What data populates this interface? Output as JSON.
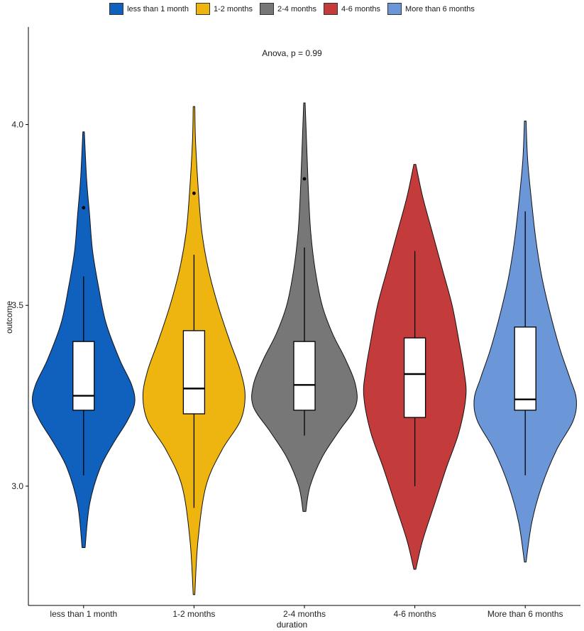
{
  "chart_data": {
    "type": "violin",
    "xlabel": "duration",
    "ylabel": "outcome",
    "ylim": [
      2.67,
      4.27
    ],
    "yticks": [
      "3.0",
      "3.5",
      "4.0"
    ],
    "annotation": "Anova, p = 0.99",
    "legend_position": "top",
    "categories": [
      "less than 1 month",
      "1-2 months",
      "2-4 months",
      "4-6 months",
      "More than 6 months"
    ],
    "colors": [
      "#1060BE",
      "#EEB40F",
      "#777777",
      "#C43B3B",
      "#6B97D8"
    ],
    "series": [
      {
        "name": "less than 1 month",
        "box": {
          "whisker_low": 3.03,
          "q1": 3.21,
          "median": 3.25,
          "q3": 3.4,
          "whisker_high": 3.58
        },
        "outliers": [
          3.77
        ],
        "violin_range": [
          2.83,
          3.98
        ],
        "density": [
          [
            2.83,
            2
          ],
          [
            2.95,
            8
          ],
          [
            3.05,
            22
          ],
          [
            3.12,
            40
          ],
          [
            3.18,
            58
          ],
          [
            3.23,
            68
          ],
          [
            3.28,
            64
          ],
          [
            3.35,
            48
          ],
          [
            3.45,
            30
          ],
          [
            3.55,
            20
          ],
          [
            3.65,
            12
          ],
          [
            3.75,
            8
          ],
          [
            3.85,
            4
          ],
          [
            3.98,
            1
          ]
        ]
      },
      {
        "name": "1-2 months",
        "box": {
          "whisker_low": 2.94,
          "q1": 3.2,
          "median": 3.27,
          "q3": 3.43,
          "whisker_high": 3.64
        },
        "outliers": [
          3.81
        ],
        "violin_range": [
          2.7,
          4.05
        ],
        "density": [
          [
            2.7,
            1
          ],
          [
            2.85,
            5
          ],
          [
            3.0,
            15
          ],
          [
            3.1,
            35
          ],
          [
            3.18,
            58
          ],
          [
            3.25,
            64
          ],
          [
            3.32,
            58
          ],
          [
            3.4,
            45
          ],
          [
            3.5,
            30
          ],
          [
            3.6,
            18
          ],
          [
            3.7,
            10
          ],
          [
            3.8,
            6
          ],
          [
            3.95,
            2
          ],
          [
            4.05,
            1
          ]
        ]
      },
      {
        "name": "2-4 months",
        "box": {
          "whisker_low": 3.14,
          "q1": 3.21,
          "median": 3.28,
          "q3": 3.4,
          "whisker_high": 3.66
        },
        "outliers": [
          3.85
        ],
        "violin_range": [
          2.93,
          4.06
        ],
        "density": [
          [
            2.93,
            2
          ],
          [
            3.0,
            8
          ],
          [
            3.08,
            25
          ],
          [
            3.15,
            48
          ],
          [
            3.22,
            72
          ],
          [
            3.28,
            72
          ],
          [
            3.35,
            58
          ],
          [
            3.42,
            40
          ],
          [
            3.5,
            25
          ],
          [
            3.6,
            15
          ],
          [
            3.7,
            9
          ],
          [
            3.8,
            6
          ],
          [
            3.9,
            4
          ],
          [
            4.06,
            1
          ]
        ]
      },
      {
        "name": "4-6 months",
        "box": {
          "whisker_low": 3.0,
          "q1": 3.19,
          "median": 3.31,
          "q3": 3.41,
          "whisker_high": 3.65
        },
        "outliers": [],
        "violin_range": [
          2.77,
          3.89
        ],
        "density": [
          [
            2.77,
            1
          ],
          [
            2.85,
            8
          ],
          [
            2.95,
            20
          ],
          [
            3.05,
            32
          ],
          [
            3.15,
            45
          ],
          [
            3.25,
            52
          ],
          [
            3.32,
            50
          ],
          [
            3.4,
            45
          ],
          [
            3.5,
            38
          ],
          [
            3.6,
            28
          ],
          [
            3.7,
            18
          ],
          [
            3.8,
            8
          ],
          [
            3.89,
            1
          ]
        ]
      },
      {
        "name": "More than 6 months",
        "box": {
          "whisker_low": 3.03,
          "q1": 3.21,
          "median": 3.24,
          "q3": 3.44,
          "whisker_high": 3.76
        },
        "outliers": [],
        "violin_range": [
          2.79,
          4.01
        ],
        "density": [
          [
            2.79,
            1
          ],
          [
            2.9,
            8
          ],
          [
            3.0,
            20
          ],
          [
            3.1,
            38
          ],
          [
            3.18,
            58
          ],
          [
            3.24,
            62
          ],
          [
            3.3,
            54
          ],
          [
            3.38,
            42
          ],
          [
            3.48,
            30
          ],
          [
            3.58,
            20
          ],
          [
            3.68,
            13
          ],
          [
            3.78,
            8
          ],
          [
            3.9,
            3
          ],
          [
            4.01,
            1
          ]
        ]
      }
    ]
  }
}
